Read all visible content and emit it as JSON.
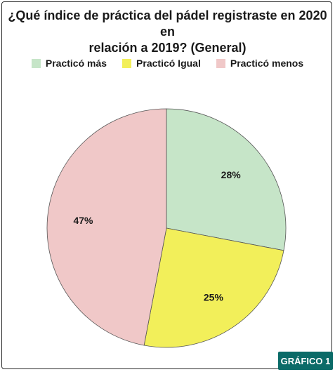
{
  "colors": {
    "mas": "#c6e5c8",
    "igual": "#f2ef5a",
    "menos": "#f0c8c8",
    "badge": "#0b6b68"
  },
  "badge": {
    "label": "GRÁFICO 1"
  },
  "chart_data": {
    "type": "pie",
    "title_lines": [
      "¿Qué índice de práctica del pádel registraste en 2020 en",
      "relación a 2019? (General)"
    ],
    "legend_placement": "top",
    "categories": [
      "Practicó más",
      "Practicó Igual",
      "Practicó menos"
    ],
    "values": [
      28,
      25,
      47
    ],
    "value_labels": [
      "28%",
      "25%",
      "47%"
    ]
  }
}
